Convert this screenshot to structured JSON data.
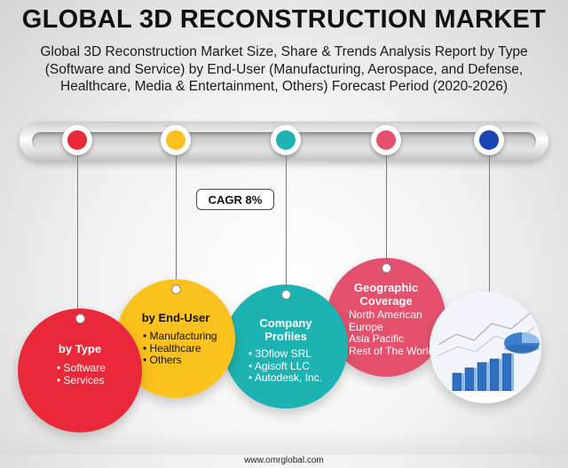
{
  "title": "GLOBAL 3D RECONSTRUCTION MARKET",
  "subtitle_lines": [
    "Global 3D Reconstruction Market Size, Share & Trends Analysis Report by Type",
    "(Software and Service) by End-User (Manufacturing, Aerospace, and Defense,",
    "Healthcare, Media & Entertainment, Others) Forecast Period (2020-2026)"
  ],
  "cagr_label": "CAGR 8%",
  "colors": {
    "red": "#e9293a",
    "yellow": "#fbc21d",
    "teal": "#1db3b2",
    "pink": "#e5506c",
    "blue": "#1946b4"
  },
  "segments": {
    "type": {
      "heading": "by Type",
      "items": [
        "Software",
        "Services"
      ]
    },
    "end_user": {
      "heading": "by End-User",
      "items": [
        "Manufacturing",
        "Healthcare",
        "Others"
      ]
    },
    "company": {
      "heading_line1": "Company",
      "heading_line2": "Profiles",
      "items": [
        "3Dflow SRL",
        "Agisoft LLC",
        "Autodesk, Inc."
      ]
    },
    "geo": {
      "heading_line1": "Geographic",
      "heading_line2": "Coverage",
      "items": [
        "North American",
        "Europe",
        "Asia Pacific",
        "Rest of The World"
      ]
    }
  },
  "footer": "www.omrglobal.com"
}
